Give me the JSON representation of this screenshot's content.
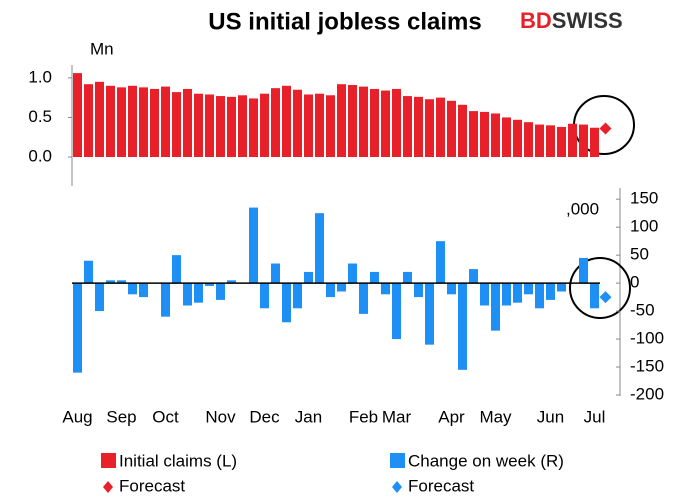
{
  "logo": {
    "first": "BD",
    "second": "SWISS"
  },
  "chart_data": [
    {
      "type": "bar",
      "title": "US initial jobless claims",
      "y_label": "Mn",
      "ylim": [
        0,
        1.15
      ],
      "yticks": [
        {
          "value": 0,
          "label": "0.0"
        },
        {
          "value": 0.5,
          "label": "0.5"
        },
        {
          "value": 1,
          "label": "1.0"
        }
      ],
      "series": [
        {
          "name": "Initial claims (L)",
          "color": "#e8202a",
          "values": [
            1.06,
            0.92,
            0.95,
            0.9,
            0.88,
            0.9,
            0.88,
            0.86,
            0.89,
            0.82,
            0.86,
            0.8,
            0.79,
            0.77,
            0.76,
            0.78,
            0.74,
            0.8,
            0.87,
            0.9,
            0.85,
            0.79,
            0.8,
            0.78,
            0.92,
            0.91,
            0.89,
            0.86,
            0.84,
            0.86,
            0.77,
            0.76,
            0.73,
            0.75,
            0.71,
            0.66,
            0.58,
            0.57,
            0.55,
            0.5,
            0.47,
            0.44,
            0.41,
            0.4,
            0.38,
            0.42,
            0.41,
            0.37,
            null
          ]
        },
        {
          "name": "Forecast",
          "color": "#e8202a",
          "values": [
            null,
            null,
            null,
            null,
            null,
            null,
            null,
            null,
            null,
            null,
            null,
            null,
            null,
            null,
            null,
            null,
            null,
            null,
            null,
            null,
            null,
            null,
            null,
            null,
            null,
            null,
            null,
            null,
            null,
            null,
            null,
            null,
            null,
            null,
            null,
            null,
            null,
            null,
            null,
            null,
            null,
            null,
            null,
            null,
            null,
            null,
            null,
            null,
            0.36
          ]
        }
      ]
    },
    {
      "type": "bar",
      "y_label": ",000",
      "categories": [
        "Aug",
        null,
        null,
        null,
        "Sep",
        null,
        null,
        null,
        "Oct",
        null,
        null,
        null,
        null,
        "Nov",
        null,
        null,
        null,
        "Dec",
        null,
        null,
        null,
        "Jan",
        null,
        null,
        null,
        null,
        "Feb",
        null,
        null,
        "Mar",
        null,
        null,
        null,
        null,
        "Apr",
        null,
        null,
        null,
        "May",
        null,
        null,
        null,
        null,
        "Jun",
        null,
        null,
        null,
        "Jul",
        null
      ],
      "ylim": [
        -200,
        170
      ],
      "yticks": [
        150,
        100,
        50,
        0,
        -50,
        -100,
        -150,
        -200
      ],
      "series": [
        {
          "name": "Change on week (R)",
          "color": "#1e8ff5",
          "values": [
            -160,
            40,
            -50,
            5,
            5,
            -20,
            -25,
            0,
            -60,
            50,
            -40,
            -35,
            -5,
            -30,
            5,
            0,
            135,
            -45,
            35,
            -70,
            -45,
            20,
            125,
            -25,
            -15,
            35,
            -55,
            20,
            -20,
            -100,
            20,
            -25,
            -110,
            75,
            -20,
            -155,
            25,
            -40,
            -85,
            -40,
            -35,
            -20,
            -45,
            -30,
            -15,
            0,
            45,
            -45,
            null
          ]
        },
        {
          "name": "Forecast",
          "color": "#1e8ff5",
          "values": [
            null,
            null,
            null,
            null,
            null,
            null,
            null,
            null,
            null,
            null,
            null,
            null,
            null,
            null,
            null,
            null,
            null,
            null,
            null,
            null,
            null,
            null,
            null,
            null,
            null,
            null,
            null,
            null,
            null,
            null,
            null,
            null,
            null,
            null,
            null,
            null,
            null,
            null,
            null,
            null,
            null,
            null,
            null,
            null,
            null,
            null,
            null,
            null,
            -25
          ]
        }
      ]
    }
  ]
}
